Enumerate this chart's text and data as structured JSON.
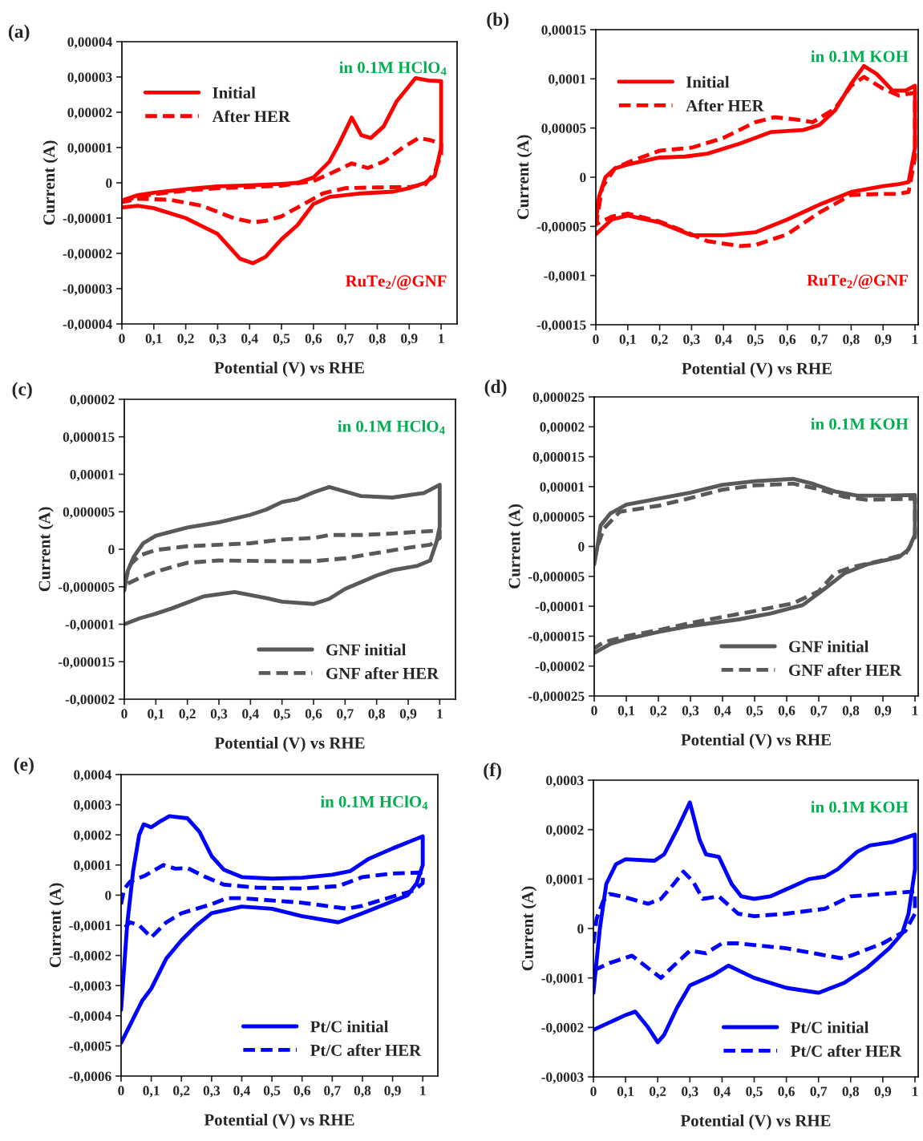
{
  "chart_data": [
    {
      "type": "line",
      "title": "(a)",
      "xlabel": "Potential (V) vs RHE",
      "ylabel": "Current (A)",
      "annotations": [
        "in 0.1M HClO$_{4}$",
        "RuTe$_{2}$/@GNF"
      ],
      "legend": "top left",
      "grid": false,
      "xlim": [
        0,
        1.05
      ],
      "ylim": [
        -4e-05,
        4e-05
      ],
      "xticks": [
        0,
        {
          "value": 0.1,
          "label": "0,1"
        },
        {
          "value": 0.2,
          "label": "0,2"
        },
        {
          "value": 0.3,
          "label": "0,3"
        },
        {
          "value": 0.4,
          "label": "0,4"
        },
        {
          "value": 0.5,
          "label": "0,5"
        },
        {
          "value": 0.6,
          "label": "0,6"
        },
        {
          "value": 0.7,
          "label": "0,7"
        },
        {
          "value": 0.8,
          "label": "0,8"
        },
        {
          "value": 0.9,
          "label": "0,9"
        },
        1
      ],
      "yticks": [
        {
          "value": -4e-05,
          "label": "-0,00004"
        },
        {
          "value": -3e-05,
          "label": "-0,00003"
        },
        {
          "value": -2e-05,
          "label": "-0,00002"
        },
        {
          "value": -1e-05,
          "label": "-0,00001"
        },
        0,
        {
          "value": 1e-05,
          "label": "0,00001"
        },
        {
          "value": 2e-05,
          "label": "0,00002"
        },
        {
          "value": 3e-05,
          "label": "0,00003"
        },
        {
          "value": 4e-05,
          "label": "0,00004"
        }
      ],
      "series": [
        {
          "name": "Initial",
          "color": "#ff0000",
          "line_style": "solid",
          "x": [
            0,
            0.05,
            0.1,
            0.2,
            0.3,
            0.4,
            0.5,
            0.55,
            0.6,
            0.65,
            0.68,
            0.72,
            0.75,
            0.78,
            0.82,
            0.86,
            0.92,
            0.96,
            1.0,
            1.0,
            0.98,
            0.95,
            0.9,
            0.85,
            0.75,
            0.65,
            0.6,
            0.55,
            0.5,
            0.45,
            0.41,
            0.37,
            0.3,
            0.2,
            0.1,
            0.05,
            0
          ],
          "values": [
            -5e-06,
            -3.5e-06,
            -2.8e-06,
            -1.8e-06,
            -1e-06,
            -7e-07,
            -3e-07,
            0,
            1.5e-06,
            6e-06,
            1.1e-05,
            1.85e-05,
            1.35e-05,
            1.27e-05,
            1.6e-05,
            2.3e-05,
            2.97e-05,
            2.9e-05,
            2.88e-05,
            1e-05,
            2e-06,
            0,
            -1.5e-06,
            -2.5e-06,
            -3e-06,
            -4e-06,
            -6e-06,
            -1.2e-05,
            -1.6e-05,
            -2.1e-05,
            -2.28e-05,
            -2.15e-05,
            -1.45e-05,
            -1e-05,
            -7.2e-06,
            -6.5e-06,
            -7e-06
          ]
        },
        {
          "name": "After HER",
          "color": "#ff0000",
          "line_style": "dashed",
          "x": [
            0,
            0.1,
            0.2,
            0.3,
            0.4,
            0.5,
            0.6,
            0.65,
            0.72,
            0.77,
            0.82,
            0.88,
            0.93,
            0.97,
            1.0,
            1.0,
            0.98,
            0.95,
            0.9,
            0.8,
            0.7,
            0.63,
            0.55,
            0.5,
            0.45,
            0.41,
            0.35,
            0.25,
            0.15,
            0.05,
            0
          ],
          "values": [
            -5e-06,
            -3.2e-06,
            -2.2e-06,
            -1.5e-06,
            -1.2e-06,
            -8e-07,
            5e-07,
            2.5e-06,
            5.5e-06,
            4.2e-06,
            6e-06,
            1e-05,
            1.27e-05,
            1.2e-05,
            1.1e-05,
            8e-06,
            3e-06,
            -5e-07,
            -1.2e-06,
            -1.3e-06,
            -1.5e-06,
            -3e-06,
            -7e-06,
            -9.5e-06,
            -1.08e-05,
            -1.12e-05,
            -1e-05,
            -6.5e-06,
            -4.8e-06,
            -4.5e-06,
            -5.5e-06
          ]
        }
      ]
    },
    {
      "type": "line",
      "title": "(b)",
      "xlabel": "Potential (V) vs RHE",
      "ylabel": "Current (A)",
      "annotations": [
        "in 0.1M KOH",
        "RuTe$_{2}$/@GNF"
      ],
      "legend": "top left",
      "grid": false,
      "xlim": [
        0,
        1.01
      ],
      "ylim": [
        -0.00015,
        0.00015
      ],
      "xticks": [
        0,
        {
          "value": 0.1,
          "label": "0,1"
        },
        {
          "value": 0.2,
          "label": "0,2"
        },
        {
          "value": 0.3,
          "label": "0,3"
        },
        {
          "value": 0.4,
          "label": "0,4"
        },
        {
          "value": 0.5,
          "label": "0,5"
        },
        {
          "value": 0.6,
          "label": "0,6"
        },
        {
          "value": 0.7,
          "label": "0,7"
        },
        {
          "value": 0.8,
          "label": "0,8"
        },
        {
          "value": 0.9,
          "label": "0,9"
        },
        1
      ],
      "yticks": [
        {
          "value": -0.00015,
          "label": "-0,00015"
        },
        {
          "value": -0.0001,
          "label": "-0,0001"
        },
        {
          "value": -5e-05,
          "label": "-0,00005"
        },
        0,
        {
          "value": 5e-05,
          "label": "0,00005"
        },
        {
          "value": 0.0001,
          "label": "0,0001"
        },
        {
          "value": 0.00015,
          "label": "0,00015"
        }
      ],
      "series": [
        {
          "name": "Initial",
          "color": "#ff0000",
          "line_style": "solid",
          "x": [
            0,
            0.01,
            0.03,
            0.06,
            0.1,
            0.2,
            0.28,
            0.35,
            0.45,
            0.55,
            0.65,
            0.7,
            0.75,
            0.8,
            0.84,
            0.88,
            0.93,
            0.97,
            1.0,
            1.0,
            0.98,
            0.95,
            0.9,
            0.8,
            0.7,
            0.6,
            0.5,
            0.4,
            0.3,
            0.2,
            0.1,
            0.05,
            0
          ],
          "values": [
            -4.5e-05,
            -2e-05,
            0,
            9e-06,
            1.3e-05,
            2e-05,
            2.1e-05,
            2.4e-05,
            3.4e-05,
            4.6e-05,
            4.8e-05,
            5.3e-05,
            6.8e-05,
            9.5e-05,
            0.000113,
            0.000105,
            8.8e-05,
            8.8e-05,
            9.3e-05,
            3e-05,
            -5e-06,
            -7e-06,
            -9e-06,
            -1.5e-05,
            -2.8e-05,
            -4.3e-05,
            -5.6e-05,
            -5.9e-05,
            -5.9e-05,
            -4.6e-05,
            -3.9e-05,
            -4.3e-05,
            -5.8e-05
          ]
        },
        {
          "name": "After HER",
          "color": "#ff0000",
          "line_style": "dashed",
          "x": [
            0,
            0.02,
            0.06,
            0.1,
            0.2,
            0.3,
            0.4,
            0.5,
            0.56,
            0.62,
            0.68,
            0.75,
            0.8,
            0.84,
            0.9,
            0.95,
            1.0,
            1.0,
            0.98,
            0.95,
            0.9,
            0.8,
            0.7,
            0.6,
            0.5,
            0.45,
            0.35,
            0.3,
            0.2,
            0.1,
            0.05,
            0
          ],
          "values": [
            -5e-05,
            -1e-05,
            9e-06,
            1.5e-05,
            2.7e-05,
            3e-05,
            4e-05,
            5.6e-05,
            6.1e-05,
            5.9e-05,
            5.6e-05,
            7e-05,
            9.3e-05,
            0.000102,
            9e-05,
            8.3e-05,
            8.6e-05,
            2e-05,
            -1.5e-05,
            -1.7e-05,
            -1.7e-05,
            -1.8e-05,
            -3.6e-05,
            -5.8e-05,
            -6.9e-05,
            -7e-05,
            -6.5e-05,
            -5.8e-05,
            -4.5e-05,
            -3.7e-05,
            -4e-05,
            -4.8e-05
          ]
        }
      ]
    },
    {
      "type": "line",
      "title": "(c)",
      "xlabel": "Potential (V) vs RHE",
      "ylabel": "Current (A)",
      "annotations": [
        "in 0.1M HClO$_{4}$"
      ],
      "legend": "bottom right",
      "grid": false,
      "xlim": [
        0,
        1.05
      ],
      "ylim": [
        -2e-05,
        2e-05
      ],
      "xticks": [
        0,
        {
          "value": 0.1,
          "label": "0,1"
        },
        {
          "value": 0.2,
          "label": "0,2"
        },
        {
          "value": 0.3,
          "label": "0,3"
        },
        {
          "value": 0.4,
          "label": "0,4"
        },
        {
          "value": 0.5,
          "label": "0,5"
        },
        {
          "value": 0.6,
          "label": "0,6"
        },
        {
          "value": 0.7,
          "label": "0,7"
        },
        {
          "value": 0.8,
          "label": "0,8"
        },
        {
          "value": 0.9,
          "label": "0,9"
        },
        1
      ],
      "yticks": [
        {
          "value": -2e-05,
          "label": "-0,00002"
        },
        {
          "value": -1.5e-05,
          "label": "-0,000015"
        },
        {
          "value": -1e-05,
          "label": "-0,00001"
        },
        {
          "value": -5e-06,
          "label": "-0,000005"
        },
        0,
        {
          "value": 5e-06,
          "label": "0,000005"
        },
        {
          "value": 1e-05,
          "label": "0,00001"
        },
        {
          "value": 1.5e-05,
          "label": "0,000015"
        },
        {
          "value": 2e-05,
          "label": "0,00002"
        }
      ],
      "series": [
        {
          "name": "GNF initial",
          "color": "#595959",
          "line_style": "solid",
          "x": [
            0,
            0.01,
            0.03,
            0.06,
            0.1,
            0.2,
            0.3,
            0.4,
            0.45,
            0.5,
            0.55,
            0.6,
            0.65,
            0.7,
            0.75,
            0.85,
            0.95,
            1.0,
            1.0,
            0.99,
            0.97,
            0.93,
            0.85,
            0.8,
            0.7,
            0.65,
            0.6,
            0.5,
            0.45,
            0.35,
            0.25,
            0.15,
            0.1,
            0.05,
            0
          ],
          "values": [
            -5.5e-06,
            -3e-06,
            -1e-06,
            8e-07,
            1.8e-06,
            2.9e-06,
            3.6e-06,
            4.6e-06,
            5.3e-06,
            6.3e-06,
            6.7e-06,
            7.6e-06,
            8.3e-06,
            7.7e-06,
            7.1e-06,
            6.9e-06,
            7.5e-06,
            8.6e-06,
            3e-06,
            1e-06,
            -1.5e-06,
            -2.2e-06,
            -2.8e-06,
            -3.5e-06,
            -5.3e-06,
            -6.6e-06,
            -7.3e-06,
            -7e-06,
            -6.5e-06,
            -5.7e-06,
            -6.3e-06,
            -7.9e-06,
            -8.6e-06,
            -9.2e-06,
            -1e-05
          ]
        },
        {
          "name": "GNF after HER",
          "color": "#595959",
          "line_style": "dashed",
          "x": [
            0,
            0.02,
            0.05,
            0.1,
            0.2,
            0.4,
            0.5,
            0.6,
            0.65,
            0.75,
            0.85,
            1.0,
            1.0,
            0.97,
            0.9,
            0.8,
            0.7,
            0.6,
            0.5,
            0.3,
            0.2,
            0.1,
            0.05,
            0
          ],
          "values": [
            -4.5e-06,
            -2e-06,
            -8e-07,
            -1e-07,
            4e-07,
            8e-07,
            1.3e-06,
            1.5e-06,
            1.9e-06,
            1.9e-06,
            2.1e-06,
            2.5e-06,
            1.5e-06,
            6e-07,
            2e-07,
            -5e-07,
            -1.2e-06,
            -1.6e-06,
            -1.6e-06,
            -1.5e-06,
            -1.8e-06,
            -3e-06,
            -3.8e-06,
            -4.8e-06
          ]
        }
      ]
    },
    {
      "type": "line",
      "title": "(d)",
      "xlabel": "Potential (V) vs RHE",
      "ylabel": "Current (A)",
      "annotations": [
        "in 0.1M KOH"
      ],
      "legend": "bottom right",
      "grid": false,
      "xlim": [
        0,
        1.01
      ],
      "ylim": [
        -2.5e-05,
        2.5e-05
      ],
      "xticks": [
        0,
        {
          "value": 0.1,
          "label": "0,1"
        },
        {
          "value": 0.2,
          "label": "0,2"
        },
        {
          "value": 0.3,
          "label": "0,3"
        },
        {
          "value": 0.4,
          "label": "0,4"
        },
        {
          "value": 0.5,
          "label": "0,5"
        },
        {
          "value": 0.6,
          "label": "0,6"
        },
        {
          "value": 0.7,
          "label": "0,7"
        },
        {
          "value": 0.8,
          "label": "0,8"
        },
        {
          "value": 0.9,
          "label": "0,9"
        },
        1
      ],
      "yticks": [
        {
          "value": -2.5e-05,
          "label": "-0,000025"
        },
        {
          "value": -2e-05,
          "label": "-0,00002"
        },
        {
          "value": -1.5e-05,
          "label": "-0,000015"
        },
        {
          "value": -1e-05,
          "label": "-0,00001"
        },
        {
          "value": -5e-06,
          "label": "-0,000005"
        },
        0,
        {
          "value": 5e-06,
          "label": "0,000005"
        },
        {
          "value": 1e-05,
          "label": "0,00001"
        },
        {
          "value": 1.5e-05,
          "label": "0,000015"
        },
        {
          "value": 2e-05,
          "label": "0,00002"
        },
        {
          "value": 2.5e-05,
          "label": "0,000025"
        }
      ],
      "series": [
        {
          "name": "GNF initial",
          "color": "#595959",
          "line_style": "solid",
          "x": [
            0,
            0.01,
            0.02,
            0.05,
            0.1,
            0.2,
            0.3,
            0.4,
            0.5,
            0.62,
            0.68,
            0.75,
            0.82,
            0.9,
            1.0,
            1.0,
            0.98,
            0.95,
            0.85,
            0.78,
            0.72,
            0.65,
            0.55,
            0.45,
            0.3,
            0.2,
            0.1,
            0.05,
            0
          ],
          "values": [
            -3e-06,
            0,
            3.5e-06,
            5.5e-06,
            7e-06,
            8e-06,
            9e-06,
            1.03e-05,
            1.09e-05,
            1.13e-05,
            1.05e-05,
            9.2e-06,
            8.5e-06,
            8.5e-06,
            8.6e-06,
            2e-06,
            -5e-07,
            -1.8e-06,
            -3e-06,
            -4.5e-06,
            -7e-06,
            -9.8e-06,
            -1.12e-05,
            -1.22e-05,
            -1.33e-05,
            -1.43e-05,
            -1.55e-05,
            -1.63e-05,
            -1.78e-05
          ]
        },
        {
          "name": "GNF after HER",
          "color": "#595959",
          "line_style": "dashed",
          "x": [
            0,
            0.01,
            0.03,
            0.08,
            0.2,
            0.3,
            0.4,
            0.5,
            0.62,
            0.7,
            0.78,
            0.85,
            1.0,
            1.0,
            0.97,
            0.9,
            0.8,
            0.75,
            0.7,
            0.62,
            0.5,
            0.4,
            0.3,
            0.2,
            0.1,
            0.03,
            0
          ],
          "values": [
            -2.5e-06,
            0,
            3e-06,
            5.8e-06,
            6.8e-06,
            8.1e-06,
            9.5e-06,
            1.02e-05,
            1.05e-05,
            9.6e-06,
            8.3e-06,
            7.8e-06,
            8e-06,
            1.5e-06,
            -1.3e-06,
            -2.3e-06,
            -3.5e-06,
            -4.5e-06,
            -7.5e-06,
            -9.5e-06,
            -1.08e-05,
            -1.18e-05,
            -1.28e-05,
            -1.4e-05,
            -1.5e-05,
            -1.6e-05,
            -1.7e-05
          ]
        }
      ]
    },
    {
      "type": "line",
      "title": "(e)",
      "xlabel": "Potential (V) vs RHE",
      "ylabel": "Current (A)",
      "annotations": [
        "in 0.1M HClO$_{4}$"
      ],
      "legend": "bottom right",
      "grid": false,
      "xlim": [
        0,
        1.05
      ],
      "ylim": [
        -0.0006,
        0.0004
      ],
      "xticks": [
        0,
        {
          "value": 0.1,
          "label": "0,1"
        },
        {
          "value": 0.2,
          "label": "0,2"
        },
        {
          "value": 0.3,
          "label": "0,3"
        },
        {
          "value": 0.4,
          "label": "0,4"
        },
        {
          "value": 0.5,
          "label": "0,5"
        },
        {
          "value": 0.6,
          "label": "0,6"
        },
        {
          "value": 0.7,
          "label": "0,7"
        },
        {
          "value": 0.8,
          "label": "0,8"
        },
        {
          "value": 0.9,
          "label": "0,9"
        },
        1
      ],
      "yticks": [
        {
          "value": -0.0006,
          "label": "-0,0006"
        },
        {
          "value": -0.0005,
          "label": "-0,0005"
        },
        {
          "value": -0.0004,
          "label": "-0,0004"
        },
        {
          "value": -0.0003,
          "label": "-0,0003"
        },
        {
          "value": -0.0002,
          "label": "-0,0002"
        },
        {
          "value": -0.0001,
          "label": "-0,0001"
        },
        0,
        {
          "value": 0.0001,
          "label": "0,0001"
        },
        {
          "value": 0.0002,
          "label": "0,0002"
        },
        {
          "value": 0.0003,
          "label": "0,0003"
        },
        {
          "value": 0.0004,
          "label": "0,0004"
        }
      ],
      "series": [
        {
          "name": "Pt/C initial",
          "color": "#0000ff",
          "line_style": "solid",
          "x": [
            0,
            0.02,
            0.04,
            0.06,
            0.075,
            0.1,
            0.13,
            0.16,
            0.22,
            0.26,
            0.3,
            0.34,
            0.4,
            0.5,
            0.6,
            0.7,
            0.76,
            0.82,
            0.9,
            1.0,
            1.0,
            0.98,
            0.95,
            0.9,
            0.8,
            0.72,
            0.6,
            0.5,
            0.4,
            0.3,
            0.25,
            0.2,
            0.15,
            0.1,
            0.07,
            0.03,
            0
          ],
          "values": [
            -0.00038,
            -0.0001,
            8e-05,
            0.0002,
            0.000235,
            0.000225,
            0.000245,
            0.000262,
            0.000255,
            0.00021,
            0.00013,
            8.5e-05,
            6e-05,
            5.5e-05,
            5.8e-05,
            6.8e-05,
            8e-05,
            0.00012,
            0.000155,
            0.000195,
            0.0001,
            4e-05,
            0,
            -2e-05,
            -6e-05,
            -9e-05,
            -7e-05,
            -4.5e-05,
            -3.8e-05,
            -6e-05,
            -0.0001,
            -0.00015,
            -0.00021,
            -0.00031,
            -0.00035,
            -0.00043,
            -0.00049
          ]
        },
        {
          "name": "Pt/C after HER",
          "color": "#0000ff",
          "line_style": "dashed",
          "x": [
            0,
            0.01,
            0.03,
            0.08,
            0.14,
            0.18,
            0.22,
            0.28,
            0.34,
            0.45,
            0.6,
            0.72,
            0.8,
            0.9,
            1.0,
            1.0,
            0.97,
            0.9,
            0.8,
            0.75,
            0.6,
            0.4,
            0.35,
            0.3,
            0.2,
            0.15,
            0.1,
            0.06,
            0.03,
            0
          ],
          "values": [
            -3e-05,
            2e-05,
            4.5e-05,
            6.5e-05,
            0.0001,
            8.8e-05,
            9e-05,
            6e-05,
            3.5e-05,
            2.5e-05,
            2.2e-05,
            3e-05,
            6e-05,
            7.2e-05,
            7.5e-05,
            4e-05,
            1.5e-05,
            -5e-06,
            -3.5e-05,
            -4.5e-05,
            -2.5e-05,
            -1e-05,
            -1e-05,
            -3e-05,
            -6e-05,
            -9e-05,
            -0.00014,
            -0.0001,
            -9e-05,
            -0.00012
          ]
        }
      ]
    },
    {
      "type": "line",
      "title": "(f)",
      "xlabel": "Potential (V) vs RHE",
      "ylabel": "Current (A)",
      "annotations": [
        "in 0.1M KOH"
      ],
      "legend": "bottom right",
      "grid": false,
      "xlim": [
        0,
        1.01
      ],
      "ylim": [
        -0.0003,
        0.0003
      ],
      "xticks": [
        0,
        {
          "value": 0.1,
          "label": "0,1"
        },
        {
          "value": 0.2,
          "label": "0,2"
        },
        {
          "value": 0.3,
          "label": "0,3"
        },
        {
          "value": 0.4,
          "label": "0,4"
        },
        {
          "value": 0.5,
          "label": "0,5"
        },
        {
          "value": 0.6,
          "label": "0,6"
        },
        {
          "value": 0.7,
          "label": "0,7"
        },
        {
          "value": 0.8,
          "label": "0,8"
        },
        {
          "value": 0.9,
          "label": "0,9"
        },
        1
      ],
      "yticks": [
        {
          "value": -0.0003,
          "label": "-0,0003"
        },
        {
          "value": -0.0002,
          "label": "-0,0002"
        },
        {
          "value": -0.0001,
          "label": "-0,0001"
        },
        0,
        {
          "value": 0.0001,
          "label": "0,0001"
        },
        {
          "value": 0.0002,
          "label": "0,0002"
        },
        {
          "value": 0.0003,
          "label": "0,0003"
        }
      ],
      "series": [
        {
          "name": "Pt/C initial",
          "color": "#0000ff",
          "line_style": "solid",
          "x": [
            0,
            0.02,
            0.04,
            0.07,
            0.1,
            0.19,
            0.22,
            0.26,
            0.3,
            0.33,
            0.35,
            0.39,
            0.43,
            0.46,
            0.5,
            0.55,
            0.62,
            0.67,
            0.72,
            0.76,
            0.82,
            0.86,
            0.93,
            1.0,
            1.0,
            0.98,
            0.96,
            0.92,
            0.85,
            0.78,
            0.7,
            0.6,
            0.5,
            0.42,
            0.37,
            0.3,
            0.26,
            0.22,
            0.2,
            0.17,
            0.13,
            0.1,
            0.05,
            0
          ],
          "values": [
            -0.00013,
            0,
            9e-05,
            0.00013,
            0.00014,
            0.000137,
            0.00015,
            0.0002,
            0.000255,
            0.00018,
            0.00015,
            0.000145,
            9e-05,
            6.5e-05,
            6e-05,
            6.5e-05,
            8.5e-05,
            0.0001,
            0.000105,
            0.00012,
            0.000155,
            0.000168,
            0.000175,
            0.00019,
            0.00012,
            3e-05,
            -1e-05,
            -4e-05,
            -8e-05,
            -0.00011,
            -0.00013,
            -0.00012,
            -0.0001,
            -7.5e-05,
            -9.5e-05,
            -0.000115,
            -0.00016,
            -0.000215,
            -0.00023,
            -0.0002,
            -0.000168,
            -0.000175,
            -0.00019,
            -0.000205
          ]
        },
        {
          "name": "Pt/C after HER",
          "color": "#0000ff",
          "line_style": "dashed",
          "x": [
            0,
            0.01,
            0.03,
            0.05,
            0.1,
            0.17,
            0.21,
            0.25,
            0.28,
            0.31,
            0.34,
            0.39,
            0.45,
            0.5,
            0.6,
            0.72,
            0.8,
            0.9,
            1.0,
            1.0,
            0.97,
            0.9,
            0.8,
            0.77,
            0.6,
            0.45,
            0.4,
            0.35,
            0.3,
            0.25,
            0.21,
            0.17,
            0.12,
            0.05,
            0
          ],
          "values": [
            -3e-05,
            2e-05,
            5.5e-05,
            7e-05,
            6.3e-05,
            5e-05,
            6e-05,
            9e-05,
            0.000115,
            9.5e-05,
            6e-05,
            6.5e-05,
            3e-05,
            2.5e-05,
            3e-05,
            4e-05,
            6.5e-05,
            7e-05,
            7.5e-05,
            3e-05,
            -5e-06,
            -3e-05,
            -5.5e-05,
            -6e-05,
            -4e-05,
            -3e-05,
            -3e-05,
            -5e-05,
            -4.5e-05,
            -7.5e-05,
            -0.0001,
            -8e-05,
            -5.5e-05,
            -7e-05,
            -8.5e-05
          ]
        }
      ]
    }
  ]
}
